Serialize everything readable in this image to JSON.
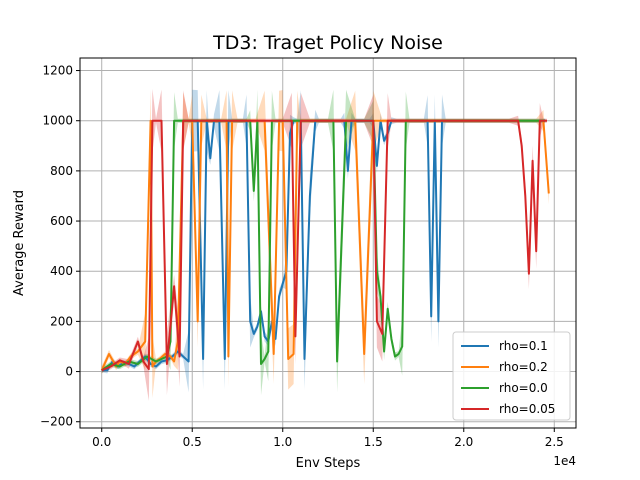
{
  "chart_data": {
    "type": "line",
    "title": "TD3: Traget Policy Noise",
    "xlabel": "Env Steps",
    "ylabel": "Average Reward",
    "x_scale_label": "1e4",
    "xlim": [
      -0.12,
      2.62
    ],
    "ylim": [
      -225,
      1250
    ],
    "x_ticks": [
      0.0,
      0.5,
      1.0,
      1.5,
      2.0,
      2.5
    ],
    "x_tick_labels": [
      "0.0",
      "0.5",
      "1.0",
      "1.5",
      "2.0",
      "2.5"
    ],
    "y_ticks": [
      -200,
      0,
      200,
      400,
      600,
      800,
      1000,
      1200
    ],
    "y_tick_labels": [
      "−200",
      "0",
      "200",
      "400",
      "600",
      "800",
      "1000",
      "1200"
    ],
    "grid": true,
    "legend_position": "lower-right",
    "series": [
      {
        "name": "rho=0.1",
        "color": "#1f77b4",
        "x": [
          0,
          0.03,
          0.06,
          0.09,
          0.12,
          0.15,
          0.18,
          0.21,
          0.24,
          0.27,
          0.3,
          0.33,
          0.36,
          0.39,
          0.42,
          0.45,
          0.48,
          0.5,
          0.53,
          0.56,
          0.58,
          0.6,
          0.62,
          0.65,
          0.68,
          0.7,
          0.72,
          0.75,
          0.78,
          0.8,
          0.82,
          0.84,
          0.86,
          0.88,
          0.9,
          0.92,
          0.94,
          0.96,
          0.98,
          1.0,
          1.02,
          1.04,
          1.06,
          1.08,
          1.1,
          1.12,
          1.15,
          1.18,
          1.2,
          1.22,
          1.24,
          1.26,
          1.28,
          1.3,
          1.32,
          1.34,
          1.36,
          1.38,
          1.4,
          1.42,
          1.44,
          1.46,
          1.48,
          1.5,
          1.52,
          1.54,
          1.56,
          1.58,
          1.6,
          1.63,
          1.66,
          1.7,
          1.73,
          1.76,
          1.78,
          1.8,
          1.82,
          1.84,
          1.86,
          1.88,
          1.9,
          1.93,
          1.96,
          2.0,
          2.05,
          2.1,
          2.15,
          2.2,
          2.25,
          2.3,
          2.35,
          2.4,
          2.45
        ],
        "y": [
          5,
          5,
          40,
          20,
          35,
          30,
          20,
          40,
          60,
          30,
          20,
          40,
          45,
          60,
          80,
          60,
          40,
          1000,
          1000,
          50,
          1000,
          850,
          1000,
          1000,
          50,
          1000,
          1000,
          1000,
          1000,
          1000,
          200,
          150,
          180,
          240,
          140,
          120,
          200,
          130,
          300,
          350,
          400,
          950,
          1000,
          1000,
          1000,
          50,
          700,
          1000,
          1000,
          1000,
          1000,
          1000,
          1000,
          1000,
          1000,
          1000,
          800,
          1000,
          1000,
          1000,
          1000,
          1000,
          1000,
          1000,
          820,
          1000,
          920,
          950,
          1000,
          1000,
          1000,
          1000,
          1000,
          1000,
          1000,
          1000,
          220,
          1000,
          200,
          1000,
          1000,
          1000,
          1000,
          1000,
          1000,
          1000,
          1000,
          1000,
          1000,
          1000,
          1000,
          1000,
          1000
        ]
      },
      {
        "name": "rho=0.2",
        "color": "#ff7f0e",
        "x": [
          0,
          0.04,
          0.08,
          0.1,
          0.13,
          0.16,
          0.2,
          0.24,
          0.27,
          0.28,
          0.3,
          0.32,
          0.35,
          0.38,
          0.4,
          0.42,
          0.45,
          0.48,
          0.5,
          0.53,
          0.55,
          0.58,
          0.6,
          0.63,
          0.66,
          0.69,
          0.7,
          0.72,
          0.75,
          0.78,
          0.8,
          0.85,
          0.9,
          0.95,
          0.98,
          1.0,
          1.03,
          1.06,
          1.08,
          1.1,
          1.15,
          1.2,
          1.25,
          1.3,
          1.35,
          1.4,
          1.45,
          1.5,
          1.55,
          1.6,
          1.65,
          1.7,
          1.75,
          1.8,
          1.85,
          1.9,
          1.93,
          1.96,
          2.0,
          2.05,
          2.1,
          2.15,
          2.2,
          2.25,
          2.3,
          2.35,
          2.4,
          2.44,
          2.47
        ],
        "y": [
          5,
          70,
          20,
          40,
          30,
          60,
          80,
          120,
          1000,
          20,
          40,
          50,
          70,
          60,
          40,
          120,
          1000,
          1000,
          1000,
          200,
          1000,
          1000,
          1000,
          1000,
          1000,
          1000,
          60,
          1000,
          1000,
          1000,
          1000,
          1000,
          1000,
          70,
          1000,
          1000,
          50,
          70,
          1000,
          1000,
          1000,
          1000,
          1000,
          1000,
          1000,
          1000,
          70,
          1000,
          1000,
          1000,
          1000,
          1000,
          1000,
          1000,
          1000,
          1000,
          1000,
          1000,
          1000,
          1000,
          1000,
          1000,
          1000,
          1000,
          1000,
          1000,
          1000,
          1000,
          710
        ]
      },
      {
        "name": "rho=0.0",
        "color": "#2ca02c",
        "x": [
          0,
          0.05,
          0.1,
          0.15,
          0.2,
          0.25,
          0.3,
          0.33,
          0.36,
          0.38,
          0.4,
          0.42,
          0.45,
          0.5,
          0.55,
          0.6,
          0.65,
          0.7,
          0.75,
          0.8,
          0.82,
          0.84,
          0.86,
          0.88,
          0.9,
          0.92,
          0.94,
          0.96,
          0.98,
          1.0,
          1.05,
          1.1,
          1.15,
          1.2,
          1.25,
          1.28,
          1.3,
          1.35,
          1.4,
          1.45,
          1.5,
          1.52,
          1.54,
          1.56,
          1.58,
          1.6,
          1.62,
          1.64,
          1.66,
          1.68,
          1.7,
          1.72,
          1.75,
          1.8,
          1.85,
          1.9,
          1.95,
          2.0,
          2.05,
          2.1,
          2.15,
          2.2,
          2.25,
          2.3,
          2.35,
          2.4,
          2.45
        ],
        "y": [
          5,
          30,
          20,
          40,
          30,
          60,
          40,
          50,
          60,
          120,
          1000,
          1000,
          1000,
          1000,
          1000,
          1000,
          1000,
          1000,
          1000,
          1000,
          1000,
          720,
          1000,
          30,
          50,
          80,
          1000,
          1000,
          1000,
          1000,
          1000,
          1000,
          1000,
          1000,
          1000,
          1000,
          40,
          1000,
          1000,
          1000,
          1000,
          400,
          300,
          80,
          250,
          130,
          60,
          70,
          100,
          1000,
          1000,
          1000,
          1000,
          1000,
          1000,
          1000,
          1000,
          1000,
          1000,
          1000,
          1000,
          1000,
          1000,
          1000,
          1000,
          1000,
          1000
        ]
      },
      {
        "name": "rho=0.05",
        "color": "#d62728",
        "x": [
          0,
          0.05,
          0.1,
          0.15,
          0.2,
          0.23,
          0.26,
          0.28,
          0.3,
          0.33,
          0.36,
          0.4,
          0.43,
          0.45,
          0.48,
          0.5,
          0.55,
          0.6,
          0.65,
          0.7,
          0.75,
          0.8,
          0.85,
          0.9,
          0.95,
          1.0,
          1.05,
          1.07,
          1.1,
          1.15,
          1.2,
          1.25,
          1.3,
          1.35,
          1.4,
          1.45,
          1.5,
          1.52,
          1.55,
          1.58,
          1.6,
          1.65,
          1.7,
          1.75,
          1.8,
          1.85,
          1.9,
          1.95,
          2.0,
          2.05,
          2.1,
          2.15,
          2.2,
          2.25,
          2.3,
          2.32,
          2.34,
          2.36,
          2.38,
          2.4,
          2.42,
          2.44,
          2.46
        ],
        "y": [
          5,
          20,
          45,
          30,
          120,
          40,
          10,
          1000,
          1000,
          1000,
          30,
          340,
          60,
          1000,
          1000,
          1000,
          1000,
          1000,
          1000,
          1000,
          1000,
          1000,
          1000,
          1000,
          1000,
          1000,
          1000,
          140,
          1000,
          1000,
          1000,
          1000,
          1000,
          1000,
          1000,
          1000,
          1000,
          200,
          150,
          1000,
          1000,
          1000,
          1000,
          1000,
          1000,
          1000,
          1000,
          1000,
          1000,
          1000,
          1000,
          1000,
          1000,
          1000,
          1000,
          900,
          700,
          390,
          840,
          480,
          1000,
          1000,
          1000
        ]
      }
    ]
  }
}
